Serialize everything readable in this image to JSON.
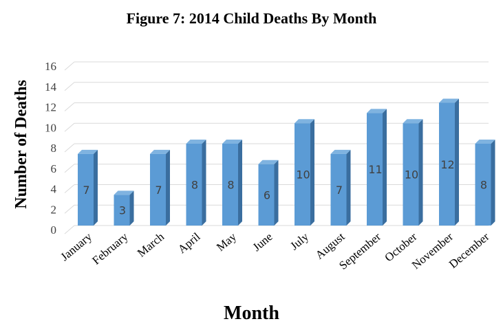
{
  "chart_data": {
    "type": "bar",
    "title": "Figure 7: 2014 Child Deaths By Month",
    "xlabel": "Month",
    "ylabel": "Number of Deaths",
    "categories": [
      "January",
      "February",
      "March",
      "April",
      "May",
      "June",
      "July",
      "August",
      "September",
      "October",
      "November",
      "December"
    ],
    "values": [
      7,
      3,
      7,
      8,
      8,
      6,
      10,
      7,
      11,
      10,
      12,
      8
    ],
    "data_labels": [
      "7",
      "3",
      "7",
      "8",
      "8",
      "6",
      "10",
      "7",
      "11",
      "10",
      "12",
      "8"
    ],
    "yticks": [
      "0",
      "2",
      "4",
      "6",
      "8",
      "10",
      "12",
      "14",
      "16"
    ],
    "ylim": [
      0,
      16
    ],
    "grid": true,
    "legend": "none",
    "colors": {
      "bar_front": "#5b9bd5",
      "bar_side": "#3a6e9f",
      "bar_top": "#7fb3e0",
      "grid": "#d9d9d9"
    }
  }
}
